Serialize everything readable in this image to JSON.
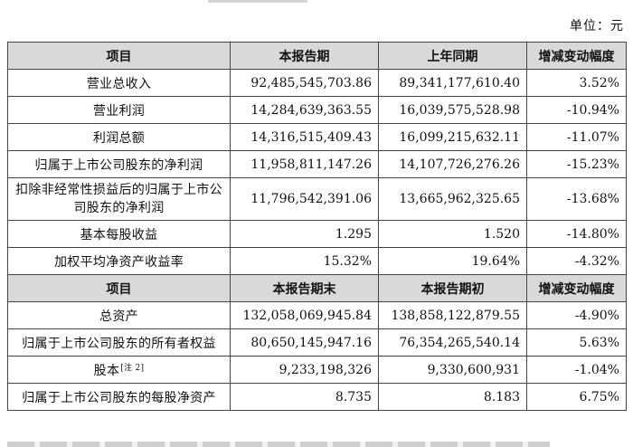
{
  "unit": "单位：元",
  "header_1": [
    "项目",
    "本报告期",
    "上年同期",
    "增减变动幅度"
  ],
  "rows_1": [
    {
      "label": "营业总收入",
      "current": "92,485,545,703.86",
      "prior": "89,341,177,610.40",
      "change": "3.52%"
    },
    {
      "label": "营业利润",
      "current": "14,284,639,363.55",
      "prior": "16,039,575,528.98",
      "change": "-10.94%"
    },
    {
      "label": "利润总额",
      "current": "14,316,515,409.43",
      "prior": "16,099,215,632.11",
      "change": "-11.07%"
    },
    {
      "label": "归属于上市公司股东的净利润",
      "current": "11,958,811,147.26",
      "prior": "14,107,726,276.26",
      "change": "-15.23%"
    },
    {
      "label": "扣除非经常性损益后的归属于上市公司股东的净利润",
      "current": "11,796,542,391.06",
      "prior": "13,665,962,325.65",
      "change": "-13.68%"
    },
    {
      "label": "基本每股收益",
      "current": "1.295",
      "prior": "1.520",
      "change": "-14.80%"
    },
    {
      "label": "加权平均净资产收益率",
      "current": "15.32%",
      "prior": "19.64%",
      "change": "-4.32%"
    }
  ],
  "header_2": [
    "项目",
    "本报告期末",
    "本报告期初",
    "增减变动幅度"
  ],
  "rows_2": [
    {
      "label": "总资产",
      "current": "132,058,069,945.84",
      "prior": "138,858,122,879.55",
      "change": "-4.90%"
    },
    {
      "label": "归属于上市公司股东的所有者权益",
      "current": "80,650,145,947.16",
      "prior": "76,354,265,540.14",
      "change": "5.63%"
    },
    {
      "label": "股本",
      "note": "[注 2]",
      "current": "9,233,198,326",
      "prior": "9,330,600,931",
      "change": "-1.04%"
    },
    {
      "label": "归属于上市公司股东的每股净资产",
      "current": "8.735",
      "prior": "8.183",
      "change": "6.75%"
    }
  ]
}
